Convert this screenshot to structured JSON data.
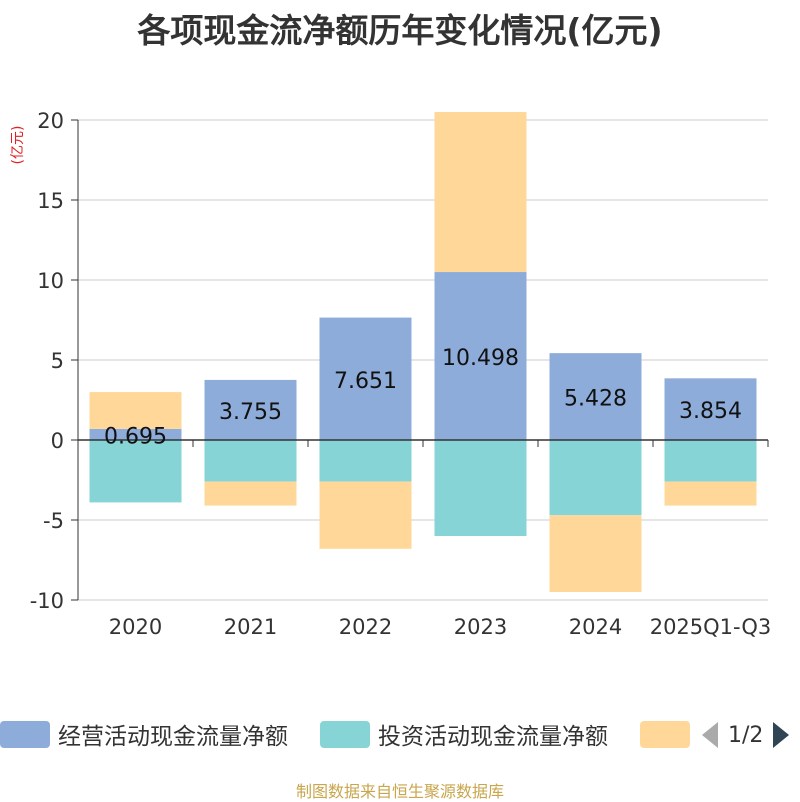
{
  "chart_data": {
    "type": "bar",
    "stacked": true,
    "title": "各项现金流净额历年变化情况(亿元)",
    "ylabel": "(亿元)",
    "categories": [
      "2020",
      "2021",
      "2022",
      "2023",
      "2024",
      "2025Q1-Q3"
    ],
    "ylim": [
      -10,
      20
    ],
    "yticks": [
      20,
      15,
      10,
      5,
      0,
      -5,
      -10
    ],
    "grid": true,
    "series": [
      {
        "name": "经营活动现金流量净额",
        "color": "#8eacd9",
        "values": [
          0.695,
          3.755,
          7.651,
          10.498,
          5.428,
          3.854
        ]
      },
      {
        "name": "投资活动现金流量净额",
        "color": "#87d4d6",
        "values": [
          -3.9,
          -2.6,
          -2.6,
          -6.0,
          -4.7,
          -2.6
        ]
      },
      {
        "name": "",
        "color": "#ffd899",
        "values": [
          2.3,
          -1.5,
          -4.2,
          10.0,
          -4.8,
          -1.5
        ]
      }
    ],
    "data_labels": [
      "0.695",
      "3.755",
      "7.651",
      "10.498",
      "5.428",
      "3.854"
    ]
  },
  "legend": {
    "items": [
      {
        "label": "经营活动现金流量净额",
        "color": "#8eacd9"
      },
      {
        "label": "投资活动现金流量净额",
        "color": "#87d4d6"
      },
      {
        "label": "",
        "color": "#ffd899"
      }
    ],
    "page_text": "1/2"
  },
  "footer": "制图数据来自恒生聚源数据库"
}
